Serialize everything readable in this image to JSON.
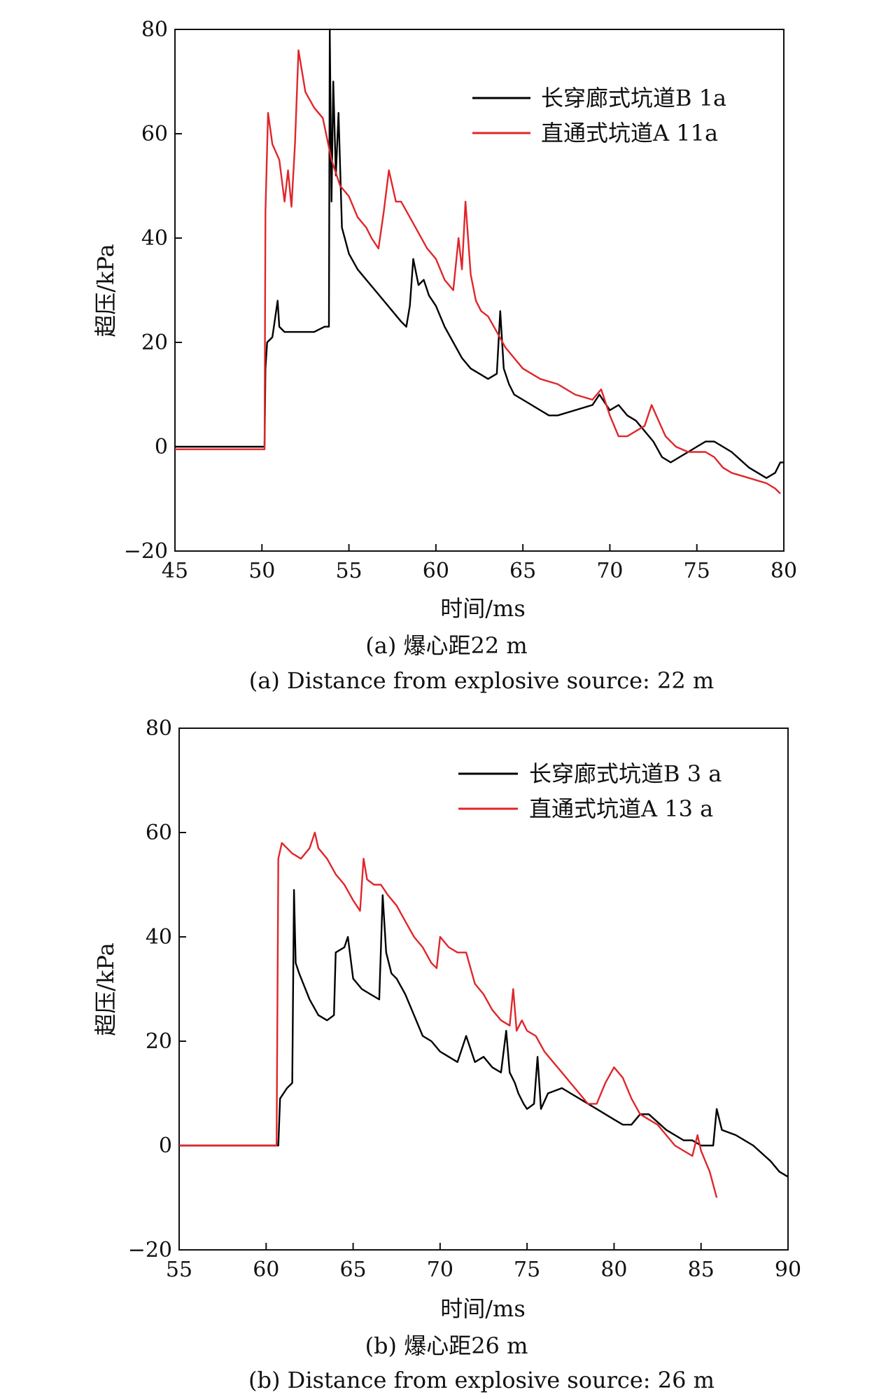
{
  "chart_data": [
    {
      "type": "line",
      "xlabel": "时间/ms",
      "ylabel": "超压/kPa",
      "xlim": [
        45,
        80
      ],
      "ylim": [
        -20,
        80
      ],
      "xticks": [
        45,
        50,
        55,
        60,
        65,
        70,
        75,
        80
      ],
      "yticks": [
        -20,
        0,
        20,
        40,
        60,
        80
      ],
      "legend_position": "top-right",
      "caption_cn": "(a) 爆心距22 m",
      "caption_en": "(a) Distance from explosive source: 22 m",
      "grid": false,
      "series": [
        {
          "name": "长穿廊式坑道B 1a",
          "color": "#000000",
          "x": [
            45,
            50.15,
            50.2,
            50.3,
            50.6,
            50.9,
            51.0,
            51.3,
            51.8,
            52.5,
            53.0,
            53.6,
            53.85,
            53.9,
            54.0,
            54.1,
            54.25,
            54.4,
            54.6,
            55.0,
            55.5,
            56.0,
            56.5,
            57.0,
            57.5,
            58.0,
            58.3,
            58.5,
            58.7,
            59.0,
            59.3,
            59.6,
            60.0,
            60.5,
            61.0,
            61.5,
            62.0,
            62.5,
            63.0,
            63.5,
            63.7,
            63.9,
            64.2,
            64.5,
            65.0,
            65.5,
            66.0,
            66.5,
            67.0,
            68.0,
            69.0,
            69.4,
            70.0,
            70.5,
            71.0,
            71.5,
            72.0,
            72.5,
            73.0,
            73.5,
            74.0,
            74.5,
            75.0,
            75.5,
            76.0,
            76.5,
            77.0,
            78.0,
            79.0,
            79.5,
            79.8,
            80.0
          ],
          "values": [
            0,
            0,
            15,
            20,
            21,
            28,
            23,
            22,
            22,
            22,
            22,
            23,
            23,
            80,
            47,
            70,
            52,
            64,
            42,
            37,
            34,
            32,
            30,
            28,
            26,
            24,
            23,
            27,
            36,
            31,
            32,
            29,
            27,
            23,
            20,
            17,
            15,
            14,
            13,
            14,
            26,
            15,
            12,
            10,
            9,
            8,
            7,
            6,
            6,
            7,
            8,
            10,
            7,
            8,
            6,
            5,
            3,
            1,
            -2,
            -3,
            -2,
            -1,
            0,
            1,
            1,
            0,
            -1,
            -4,
            -6,
            -5,
            -3,
            -3
          ]
        },
        {
          "name": "直通式坑道A 11a",
          "color": "#e0262b",
          "x": [
            45,
            50.15,
            50.2,
            50.35,
            50.6,
            51.0,
            51.3,
            51.5,
            51.7,
            51.9,
            52.1,
            52.5,
            53.0,
            53.5,
            54.0,
            54.5,
            55.0,
            55.5,
            56.0,
            56.3,
            56.7,
            57.0,
            57.3,
            57.7,
            58.0,
            58.5,
            59.0,
            59.5,
            60.0,
            60.5,
            61.0,
            61.3,
            61.5,
            61.7,
            62.0,
            62.3,
            62.6,
            63.0,
            63.5,
            64.0,
            64.5,
            65.0,
            66.0,
            67.0,
            68.0,
            69.0,
            69.5,
            70.0,
            70.5,
            71.0,
            72.0,
            72.4,
            72.8,
            73.2,
            73.8,
            74.5,
            75.0,
            75.5,
            76.0,
            76.5,
            77.0,
            78.0,
            79.0,
            79.5,
            79.8
          ],
          "values": [
            -0.5,
            -0.5,
            45,
            64,
            58,
            55,
            47,
            53,
            46,
            58,
            76,
            68,
            65,
            63,
            55,
            50,
            48,
            44,
            42,
            40,
            38,
            45,
            53,
            47,
            47,
            44,
            41,
            38,
            36,
            32,
            30,
            40,
            34,
            47,
            33,
            28,
            26,
            25,
            22,
            19,
            17,
            15,
            13,
            12,
            10,
            9,
            11,
            6,
            2,
            2,
            4,
            8,
            5,
            2,
            0,
            -1,
            -1,
            -1,
            -2,
            -4,
            -5,
            -6,
            -7,
            -8,
            -9
          ]
        }
      ]
    },
    {
      "type": "line",
      "xlabel": "时间/ms",
      "ylabel": "超压/kPa",
      "xlim": [
        55,
        90
      ],
      "ylim": [
        -20,
        80
      ],
      "xticks": [
        55,
        60,
        65,
        70,
        75,
        80,
        85,
        90
      ],
      "yticks": [
        -20,
        0,
        20,
        40,
        60,
        80
      ],
      "legend_position": "top-right",
      "caption_cn": "(b) 爆心距26 m",
      "caption_en": "(b) Distance from explosive source: 26 m",
      "grid": false,
      "series": [
        {
          "name": "长穿廊式坑道B 3 a",
          "color": "#000000",
          "x": [
            55,
            60.7,
            60.8,
            61.2,
            61.5,
            61.6,
            61.7,
            61.9,
            62.5,
            63.0,
            63.5,
            63.9,
            64.0,
            64.5,
            64.7,
            65.0,
            65.5,
            66.0,
            66.5,
            66.7,
            66.9,
            67.2,
            67.5,
            68.0,
            68.5,
            69.0,
            69.5,
            70.0,
            70.5,
            71.0,
            71.5,
            72.0,
            72.5,
            73.0,
            73.5,
            73.8,
            74.0,
            74.3,
            74.5,
            74.8,
            75.0,
            75.4,
            75.6,
            75.8,
            76.2,
            77.0,
            78.0,
            79.0,
            80.0,
            80.5,
            81.0,
            81.5,
            82.0,
            83.0,
            84.0,
            84.5,
            85.0,
            85.7,
            85.9,
            86.2,
            87.0,
            88.0,
            89.0,
            89.5,
            90.0
          ],
          "values": [
            0,
            0,
            9,
            11,
            12,
            49,
            35,
            33,
            28,
            25,
            24,
            25,
            37,
            38,
            40,
            32,
            30,
            29,
            28,
            48,
            37,
            33,
            32,
            29,
            25,
            21,
            20,
            18,
            17,
            16,
            21,
            16,
            17,
            15,
            14,
            22,
            14,
            12,
            10,
            8,
            7,
            8,
            17,
            7,
            10,
            11,
            9,
            7,
            5,
            4,
            4,
            6,
            6,
            3,
            1,
            1,
            0,
            0,
            7,
            3,
            2,
            0,
            -3,
            -5,
            -6
          ]
        },
        {
          "name": "直通式坑道A 13 a",
          "color": "#e0262b",
          "x": [
            55,
            60.6,
            60.7,
            60.9,
            61.5,
            62.0,
            62.5,
            62.8,
            63.0,
            63.5,
            64.0,
            64.5,
            65.0,
            65.4,
            65.6,
            65.8,
            66.2,
            66.6,
            67.0,
            67.5,
            68.0,
            68.5,
            69.0,
            69.5,
            69.8,
            70.0,
            70.5,
            71.0,
            71.5,
            72.0,
            72.5,
            73.0,
            73.5,
            74.0,
            74.2,
            74.4,
            74.7,
            75.0,
            75.5,
            76.0,
            76.5,
            77.0,
            77.5,
            78.0,
            78.5,
            79.0,
            79.5,
            80.0,
            80.5,
            81.0,
            81.5,
            82.0,
            82.5,
            83.0,
            83.5,
            84.0,
            84.5,
            84.8,
            85.0,
            85.5,
            85.9
          ],
          "values": [
            0,
            0,
            55,
            58,
            56,
            55,
            57,
            60,
            57,
            55,
            52,
            50,
            47,
            45,
            55,
            51,
            50,
            50,
            48,
            46,
            43,
            40,
            38,
            35,
            34,
            40,
            38,
            37,
            37,
            31,
            29,
            26,
            24,
            23,
            30,
            22,
            24,
            22,
            21,
            18,
            16,
            14,
            12,
            10,
            8,
            8,
            12,
            15,
            13,
            9,
            6,
            5,
            4,
            2,
            0,
            -1,
            -2,
            2,
            -1,
            -5,
            -10
          ]
        }
      ]
    }
  ]
}
